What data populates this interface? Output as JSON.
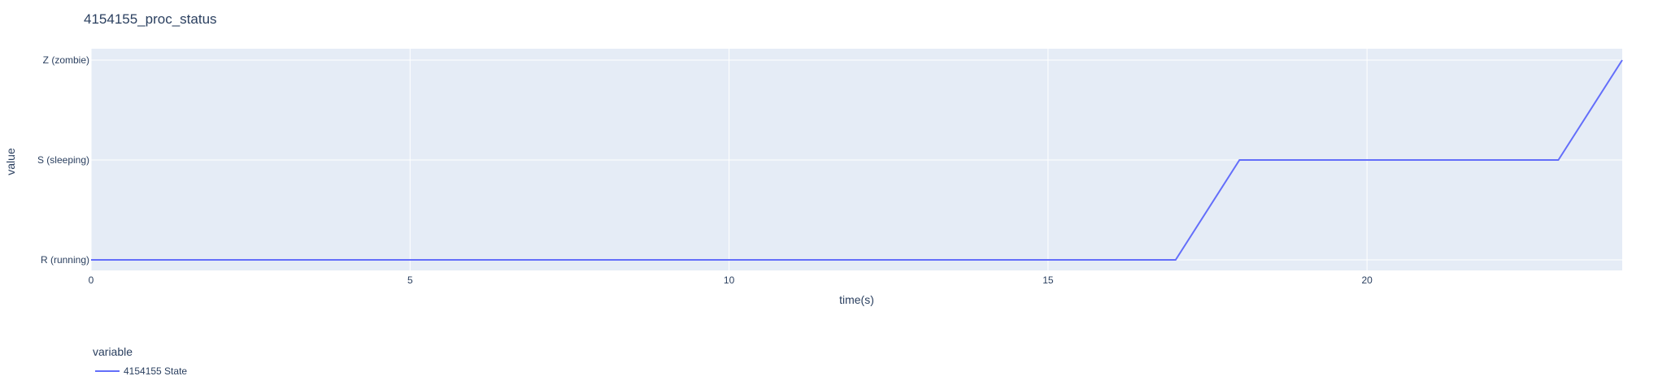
{
  "chart_data": {
    "type": "line",
    "title": "4154155_proc_status",
    "xlabel": "time(s)",
    "ylabel": "value",
    "xlim": [
      0,
      24
    ],
    "x_ticks": [
      0,
      5,
      10,
      15,
      20
    ],
    "y_categories": [
      "R (running)",
      "S (sleeping)",
      "Z (zombie)"
    ],
    "grid": true,
    "legend": {
      "title": "variable",
      "placement": "bottom-left"
    },
    "series": [
      {
        "name": "4154155 State",
        "color": "#636efa",
        "x": [
          0,
          17,
          18,
          23,
          24
        ],
        "y": [
          "R (running)",
          "R (running)",
          "S (sleeping)",
          "S (sleeping)",
          "Z (zombie)"
        ]
      }
    ],
    "plot_bgcolor": "#e5ecf6",
    "grid_color": "#ffffff"
  }
}
